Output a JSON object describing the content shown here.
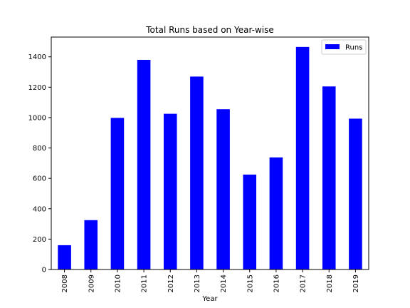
{
  "chart_data": {
    "type": "bar",
    "title": "Total Runs based on Year-wise",
    "xlabel": "Year",
    "ylabel": "",
    "categories": [
      "2008",
      "2009",
      "2010",
      "2011",
      "2012",
      "2013",
      "2014",
      "2015",
      "2016",
      "2017",
      "2018",
      "2019"
    ],
    "series": [
      {
        "name": "Runs",
        "color": "#0000ff",
        "values": [
          160,
          325,
          998,
          1380,
          1025,
          1270,
          1055,
          625,
          738,
          1465,
          1205,
          993
        ]
      }
    ],
    "ylim": [
      0,
      1530
    ],
    "yticks": [
      0,
      200,
      400,
      600,
      800,
      1000,
      1200,
      1400
    ],
    "grid": false,
    "legend_position": "top-right",
    "x_tick_rotation": "vertical"
  }
}
